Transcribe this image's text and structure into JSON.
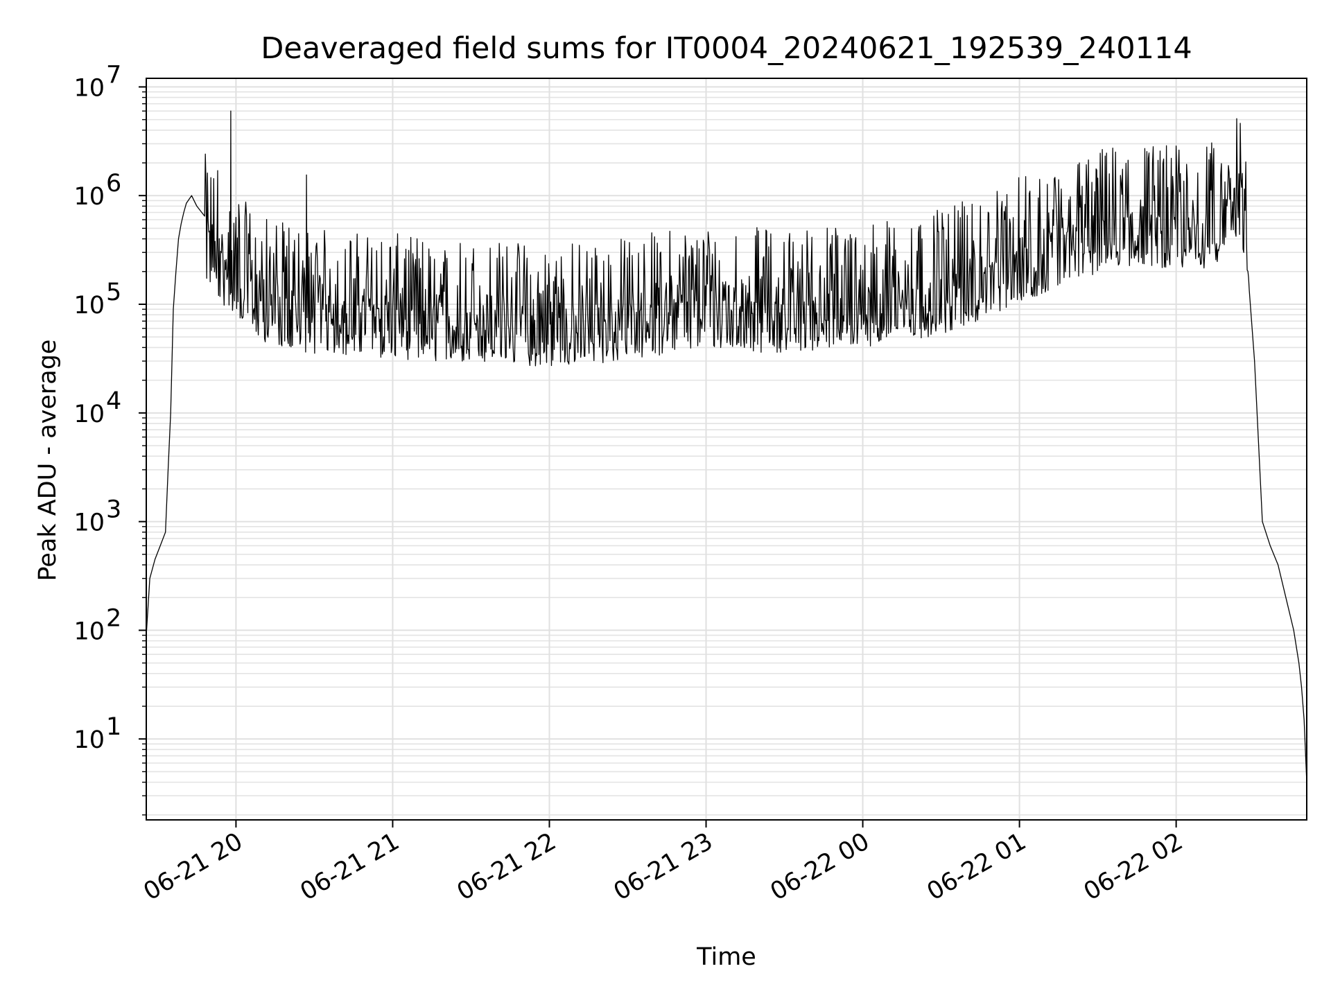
{
  "chart_data": {
    "type": "line",
    "title": "Deaveraged field sums for IT0004_20240621_192539_240114",
    "xlabel": "Time",
    "ylabel": "Peak ADU - average",
    "yscale": "log",
    "ylim": [
      1.8,
      12000000
    ],
    "xlim": [
      "2024-06-21 19:25:39",
      "2024-06-22 02:50:00"
    ],
    "grid": true,
    "x_ticks": [
      {
        "t": "2024-06-21 20:00",
        "label": "06-21 20"
      },
      {
        "t": "2024-06-21 21:00",
        "label": "06-21 21"
      },
      {
        "t": "2024-06-21 22:00",
        "label": "06-21 22"
      },
      {
        "t": "2024-06-21 23:00",
        "label": "06-21 23"
      },
      {
        "t": "2024-06-22 00:00",
        "label": "06-22 00"
      },
      {
        "t": "2024-06-22 01:00",
        "label": "06-22 01"
      },
      {
        "t": "2024-06-22 02:00",
        "label": "06-22 02"
      }
    ],
    "y_ticks": [
      {
        "v": 10,
        "base": "10",
        "exp": "1"
      },
      {
        "v": 100,
        "base": "10",
        "exp": "2"
      },
      {
        "v": 1000,
        "base": "10",
        "exp": "3"
      },
      {
        "v": 10000,
        "base": "10",
        "exp": "4"
      },
      {
        "v": 100000,
        "base": "10",
        "exp": "5"
      },
      {
        "v": 1000000,
        "base": "10",
        "exp": "6"
      },
      {
        "v": 10000000,
        "base": "10",
        "exp": "7"
      }
    ],
    "series": [
      {
        "color": "#000000",
        "x": [
          "2024-06-21 19:25:39",
          "2024-06-21 19:27",
          "2024-06-21 19:29",
          "2024-06-21 19:31",
          "2024-06-21 19:33",
          "2024-06-21 19:34",
          "2024-06-21 19:35",
          "2024-06-21 19:36",
          "2024-06-21 19:37",
          "2024-06-21 19:38",
          "2024-06-21 19:39",
          "2024-06-21 19:40",
          "2024-06-21 19:41",
          "2024-06-21 19:43",
          "2024-06-21 19:45",
          "2024-06-21 19:48",
          "2024-06-21 19:50",
          "2024-06-21 19:52",
          "2024-06-21 19:54",
          "2024-06-21 19:56",
          "2024-06-21 19:58",
          "2024-06-21 20:00",
          "2024-06-21 20:05",
          "2024-06-21 20:10",
          "2024-06-21 20:15",
          "2024-06-21 20:20",
          "2024-06-21 20:30",
          "2024-06-21 20:45",
          "2024-06-21 21:00",
          "2024-06-21 21:15",
          "2024-06-21 21:30",
          "2024-06-21 21:45",
          "2024-06-21 22:00",
          "2024-06-21 22:15",
          "2024-06-21 22:30",
          "2024-06-21 22:45",
          "2024-06-21 23:00",
          "2024-06-21 23:15",
          "2024-06-21 23:30",
          "2024-06-21 23:45",
          "2024-06-22 00:00",
          "2024-06-22 00:15",
          "2024-06-22 00:30",
          "2024-06-22 00:45",
          "2024-06-22 01:00",
          "2024-06-22 01:15",
          "2024-06-22 01:30",
          "2024-06-22 01:45",
          "2024-06-22 02:00",
          "2024-06-22 02:10",
          "2024-06-22 02:15",
          "2024-06-22 02:18",
          "2024-06-22 02:21",
          "2024-06-22 02:24",
          "2024-06-22 02:26",
          "2024-06-22 02:28",
          "2024-06-22 02:30",
          "2024-06-22 02:33",
          "2024-06-22 02:36",
          "2024-06-22 02:39",
          "2024-06-22 02:42",
          "2024-06-22 02:45",
          "2024-06-22 02:47",
          "2024-06-22 02:48",
          "2024-06-22 02:49",
          "2024-06-22 02:50"
        ],
        "y": [
          90,
          300,
          450,
          600,
          800,
          3000,
          10000,
          90000,
          200000,
          400000,
          550000,
          700000,
          850000,
          1000000,
          800000,
          500000,
          400000,
          350000,
          300000,
          260000,
          250000,
          230000,
          160000,
          130000,
          120000,
          110000,
          100000,
          95000,
          90000,
          85000,
          80000,
          78000,
          75000,
          78000,
          85000,
          100000,
          110000,
          105000,
          100000,
          110000,
          115000,
          130000,
          150000,
          200000,
          300000,
          400000,
          550000,
          650000,
          600000,
          550000,
          650000,
          900000,
          1200000,
          1100000,
          700000,
          200000,
          30000,
          1000,
          600,
          400,
          200,
          100,
          50,
          30,
          15,
          4
        ]
      }
    ],
    "noise": {
      "from": "2024-06-21 19:48",
      "to": "2024-06-22 02:28",
      "points": 1500,
      "band_low_factor": 0.35,
      "band_high_factor": 5.0,
      "spikes": [
        {
          "t": "2024-06-21 19:58",
          "y": 6000000
        },
        {
          "t": "2024-06-21 19:53",
          "y": 1700000
        },
        {
          "t": "2024-06-21 20:27",
          "y": 1550000
        },
        {
          "t": "2024-06-22 01:15",
          "y": 1400000
        },
        {
          "t": "2024-06-22 01:30",
          "y": 1450000
        }
      ]
    }
  }
}
